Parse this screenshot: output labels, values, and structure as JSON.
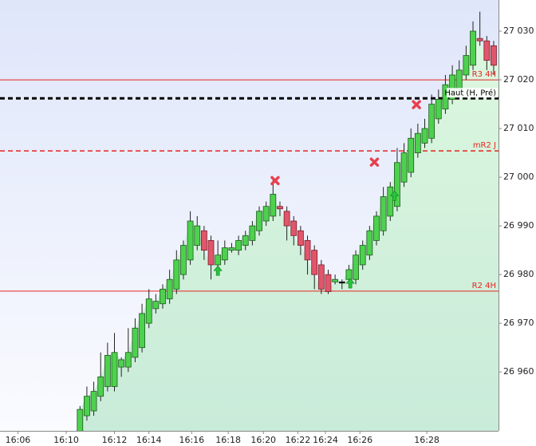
{
  "chart_data": {
    "type": "candlestick",
    "open": [
      26947.5,
      26951,
      26952,
      26955,
      26957,
      26957,
      26961,
      26961,
      26963,
      26965,
      26970,
      26973,
      26974,
      26975,
      26977,
      26980,
      26983,
      26986,
      26989,
      26987,
      26982,
      26983,
      26985,
      26985,
      26986,
      26987,
      26989,
      26991,
      26992,
      26994,
      26993,
      26991,
      26989,
      26987,
      26985,
      26982,
      26980,
      26978.5,
      26978.5,
      26979,
      26979,
      26982,
      26984,
      26987,
      26989,
      26992,
      26994,
      26999,
      27001,
      27005,
      27007,
      27008,
      27012,
      27014,
      27016,
      27018,
      27021,
      27023,
      27028.5,
      27028,
      27027
    ],
    "high": [
      26953,
      26957,
      26958,
      26964,
      26966,
      26968,
      26963,
      26969,
      26971,
      26974,
      26977,
      26976,
      26978,
      26981,
      26985,
      26987,
      26993,
      26992,
      26990,
      26988,
      26987,
      26987,
      26986.5,
      26988,
      26989,
      26991,
      26994,
      26995,
      27000,
      26995,
      26994,
      26992,
      26990,
      26988,
      26986,
      26983,
      26981,
      26980,
      26979,
      26982,
      26985,
      26987,
      26990,
      26993,
      26998,
      26999,
      27006,
      27007,
      27010,
      27011,
      27012,
      27017,
      27018,
      27021,
      27023,
      27024,
      27027,
      27032,
      27034,
      27029,
      27028
    ],
    "low": [
      26946,
      26950,
      26951,
      26954,
      26956,
      26956,
      26959,
      26960,
      26962,
      26964,
      26969,
      26972,
      26973,
      26974,
      26976,
      26979,
      26982,
      26985,
      26983,
      26979,
      26980,
      26982,
      26984.5,
      26984,
      26985,
      26986,
      26988,
      26990,
      26991,
      26992,
      26987,
      26986,
      26984,
      26980,
      26977,
      26976,
      26976,
      26978,
      26977,
      26978,
      26978,
      26981,
      26983,
      26986,
      26988,
      26991,
      26993,
      26998,
      27000,
      27004,
      27006,
      27007,
      27011,
      27013,
      27015,
      27017,
      27020,
      27022,
      27027,
      27022,
      27021
    ],
    "close": [
      26952.3,
      26955,
      26956,
      26959,
      26963.4,
      26964,
      26962.5,
      26964,
      26969,
      26972,
      26975,
      26974.5,
      26977,
      26979,
      26983,
      26986,
      26991,
      26990,
      26985,
      26982,
      26984,
      26985.5,
      26985.5,
      26987,
      26988,
      26990,
      26993,
      26994,
      26996.5,
      26993.5,
      26990,
      26988,
      26986,
      26983,
      26980,
      26977,
      26976.5,
      26979,
      26978.5,
      26981,
      26984,
      26986,
      26989,
      26992,
      26996,
      26998,
      27003,
      27005,
      27008,
      27009,
      27010,
      27015,
      27016,
      27019,
      27021,
      27022,
      27025,
      27030,
      27028,
      27024,
      27023
    ],
    "colors": {
      "up": "#4ed14e",
      "down": "#e0566a",
      "doji": "#111111",
      "outline_up": "#1e5a1e",
      "outline_down": "#7a1e2a"
    },
    "levels": [
      {
        "name": "R3 4H",
        "value": 27020,
        "color": "#e8231f",
        "dashed": false
      },
      {
        "name": "Haut (H, Pré)",
        "value": 27016.2,
        "color": "#000000",
        "dashed": true
      },
      {
        "name": "mR2 J",
        "value": 27005.4,
        "color": "#e8231f",
        "dashed": true
      },
      {
        "name": "R2 4H",
        "value": 26976.6,
        "color": "#e8231f",
        "dashed": false
      }
    ],
    "signals": [
      {
        "type": "buy",
        "index": 20,
        "value": 26980.8
      },
      {
        "type": "buy",
        "index": 39.2,
        "value": 26978.2
      },
      {
        "type": "buy",
        "index": 45.6,
        "value": 26996.2
      },
      {
        "type": "sell",
        "index": 28.3,
        "value": 26999.3
      },
      {
        "type": "sell",
        "index": 42.7,
        "value": 27003.1
      },
      {
        "type": "sell",
        "index": 48.8,
        "value": 27014.9
      }
    ],
    "xlim": [
      -11.6,
      60.7
    ],
    "xticks": [
      {
        "value": -9,
        "label": "16:06"
      },
      {
        "value": -2,
        "label": "16:10"
      },
      {
        "value": 5,
        "label": "16:12"
      },
      {
        "value": 10,
        "label": "16:14"
      },
      {
        "value": 16.2,
        "label": "16:16"
      },
      {
        "value": 21.5,
        "label": "16:18"
      },
      {
        "value": 26.6,
        "label": "16:20"
      },
      {
        "value": 31.6,
        "label": "16:22"
      },
      {
        "value": 35.6,
        "label": "16:24"
      },
      {
        "value": 40.6,
        "label": "16:26"
      },
      {
        "value": 50.3,
        "label": "16:28"
      }
    ],
    "ylim": [
      26947.9,
      27036.4
    ],
    "yticks": [
      {
        "value": 26960,
        "label": "26 960"
      },
      {
        "value": 26970,
        "label": "26 970"
      },
      {
        "value": 26980,
        "label": "26 980"
      },
      {
        "value": 26990,
        "label": "26 990"
      },
      {
        "value": 27000,
        "label": "27 000"
      },
      {
        "value": 27010,
        "label": "27 010"
      },
      {
        "value": 27020,
        "label": "27 020"
      },
      {
        "value": 27030,
        "label": "27 030"
      }
    ],
    "grid": false
  }
}
